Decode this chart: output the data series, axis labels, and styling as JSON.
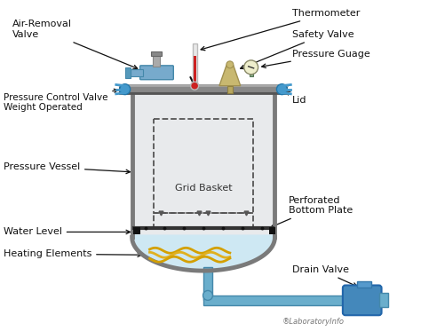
{
  "background_color": "#ffffff",
  "vessel_wall_color": "#7a7a7a",
  "vessel_fill": "#e8eaec",
  "lid_color": "#888888",
  "lid_fill": "#999999",
  "water_color": "#cce8f4",
  "water_edge": "#aaccdd",
  "pipe_color": "#6aaecc",
  "pipe_edge": "#4488aa",
  "bolt_color": "#4499cc",
  "heating_colors": [
    "#d4a000",
    "#e0b020",
    "#d4a000"
  ],
  "grid_color": "#555555",
  "perforated_color": "#333333",
  "black": "#111111",
  "arrow_color": "#111111",
  "label_color": "#111111",
  "watermark_color": "#777777",
  "labels": {
    "thermometer": "Thermometer",
    "safety_valve": "Safety Valve",
    "pressure_gauge": "Pressure Guage",
    "air_removal": "Air-Removal\nValve",
    "pressure_control": "Pressure Control Valve\nWeight Operated",
    "lid": "Lid",
    "pressure_vessel": "Pressure Vessel",
    "grid_basket": "Grid Basket",
    "perforated": "Perforated\nBottom Plate",
    "water_level": "Water Level",
    "heating": "Heating Elements",
    "drain_valve": "Drain Valve",
    "watermark": "®LaboratoryInfo"
  },
  "font_size": 8.0,
  "font_size_small": 6.5
}
